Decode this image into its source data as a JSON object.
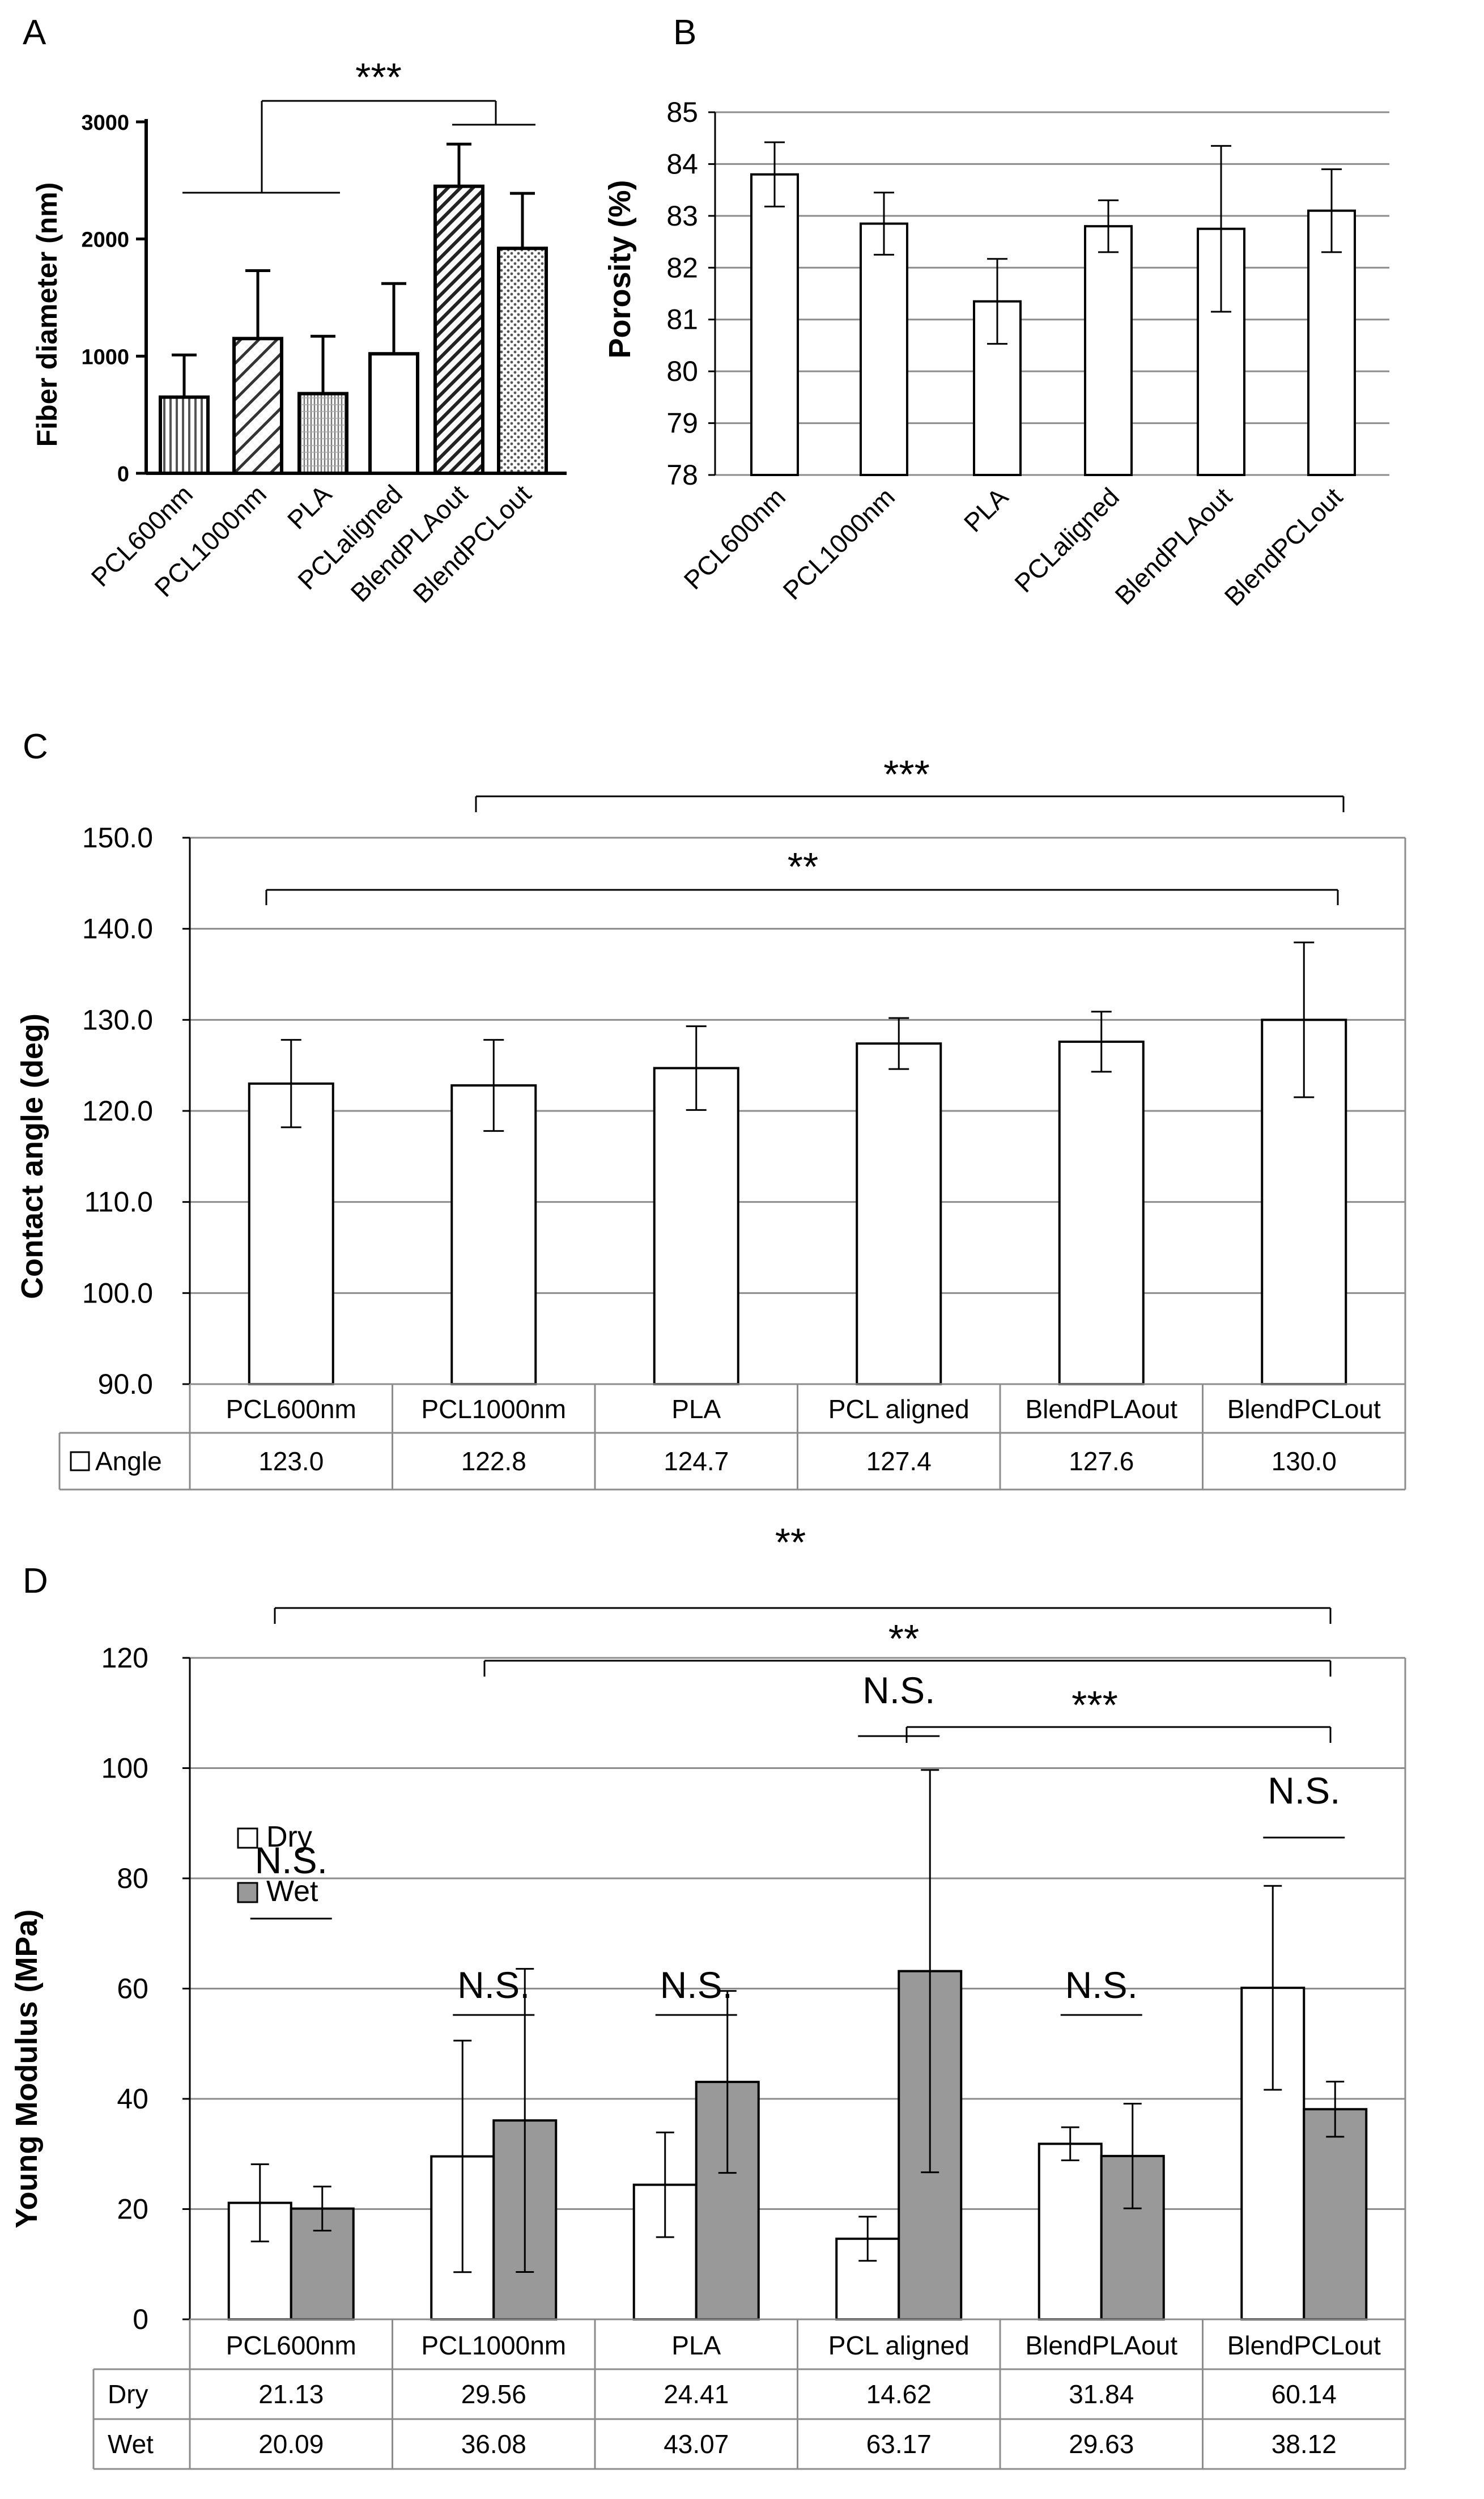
{
  "panels": [
    {
      "letter": "A",
      "chart_data": {
        "type": "bar",
        "title": "",
        "xlabel": "",
        "ylabel": "Fiber diameter (nm)",
        "ylim": [
          0,
          3000
        ],
        "yticks": [
          "0",
          "1000",
          "2000",
          "3000"
        ],
        "categories": [
          "PCL600nm",
          "PCL1000nm",
          "PLA",
          "PCLaligned",
          "BlendPLAout",
          "BlendPCLout"
        ],
        "series": [
          {
            "name": "Fiber diameter",
            "values": [
              650,
              1150,
              680,
              1020,
              2450,
              1920
            ],
            "errors": [
              360,
              580,
              490,
              600,
              360,
              470
            ]
          }
        ],
        "patterns": [
          "vertical-lines",
          "diagonal-lines",
          "fine-vertical",
          "white",
          "heavy-diagonal",
          "dotted"
        ],
        "significance": [
          {
            "label": "***"
          }
        ]
      }
    },
    {
      "letter": "B",
      "chart_data": {
        "type": "bar",
        "title": "",
        "xlabel": "",
        "ylabel": "Porosity (%)",
        "ylim": [
          78,
          85
        ],
        "yticks": [
          "78",
          "79",
          "80",
          "81",
          "82",
          "83",
          "84",
          "85"
        ],
        "categories": [
          "PCL600nm",
          "PCL1000nm",
          "PLA",
          "PCLaligned",
          "BlendPLAout",
          "BlendPCLout"
        ],
        "series": [
          {
            "name": "Porosity",
            "values": [
              83.8,
              82.85,
              81.35,
              82.8,
              82.75,
              83.1
            ],
            "errors": [
              0.62,
              0.6,
              0.82,
              0.5,
              1.6,
              0.8
            ]
          }
        ],
        "grid": true
      }
    },
    {
      "letter": "C",
      "chart_data": {
        "type": "bar",
        "title": "",
        "xlabel": "",
        "ylabel": "Contact angle (deg)",
        "ylim": [
          90,
          150
        ],
        "yticks": [
          "90.0",
          "100.0",
          "110.0",
          "120.0",
          "130.0",
          "140.0",
          "150.0"
        ],
        "categories": [
          "PCL600nm",
          "PCL1000nm",
          "PLA",
          "PCL aligned",
          "BlendPLAout",
          "BlendPCLout"
        ],
        "series": [
          {
            "name": "Angle",
            "values": [
              123.0,
              122.8,
              124.7,
              127.4,
              127.6,
              130.0
            ],
            "errors": [
              4.8,
              5.0,
              4.6,
              2.8,
              3.3,
              8.5
            ]
          }
        ],
        "table": {
          "header_empty": "",
          "rows": [
            {
              "label": "Angle",
              "cells": [
                "123.0",
                "122.8",
                "124.7",
                "127.4",
                "127.6",
                "130.0"
              ]
            }
          ]
        },
        "significance": [
          {
            "label": "***"
          },
          {
            "label": "**"
          }
        ]
      }
    },
    {
      "letter": "D",
      "chart_data": {
        "type": "bar",
        "title": "",
        "xlabel": "",
        "ylabel": "Young Modulus (MPa)",
        "ylim": [
          0,
          120
        ],
        "yticks": [
          "0",
          "20",
          "40",
          "60",
          "80",
          "100",
          "120"
        ],
        "categories": [
          "PCL600nm",
          "PCL1000nm",
          "PLA",
          "PCL aligned",
          "BlendPLAout",
          "BlendPCLout"
        ],
        "series": [
          {
            "name": "Dry",
            "color": "#ffffff",
            "values": [
              21.13,
              29.56,
              24.41,
              14.62,
              31.84,
              60.14
            ],
            "errors": [
              7,
              21,
              9.5,
              4,
              3,
              18.5
            ]
          },
          {
            "name": "Wet",
            "color": "#999999",
            "values": [
              20.09,
              36.08,
              43.07,
              63.17,
              29.63,
              38.12
            ],
            "errors": [
              4,
              27.5,
              16.5,
              36.5,
              9.5,
              5
            ]
          }
        ],
        "legend": {
          "position": "top-left",
          "entries": [
            "Dry",
            "Wet"
          ]
        },
        "table": {
          "rows": [
            {
              "label": "Dry",
              "cells": [
                "21.13",
                "29.56",
                "24.41",
                "14.62",
                "31.84",
                "60.14"
              ]
            },
            {
              "label": "Wet",
              "cells": [
                "20.09",
                "36.08",
                "43.07",
                "63.17",
                "29.63",
                "38.12"
              ]
            }
          ]
        },
        "significance": [
          {
            "label": "**"
          },
          {
            "label": "**"
          },
          {
            "label": "***"
          }
        ],
        "ns_label": "N.S."
      }
    }
  ]
}
